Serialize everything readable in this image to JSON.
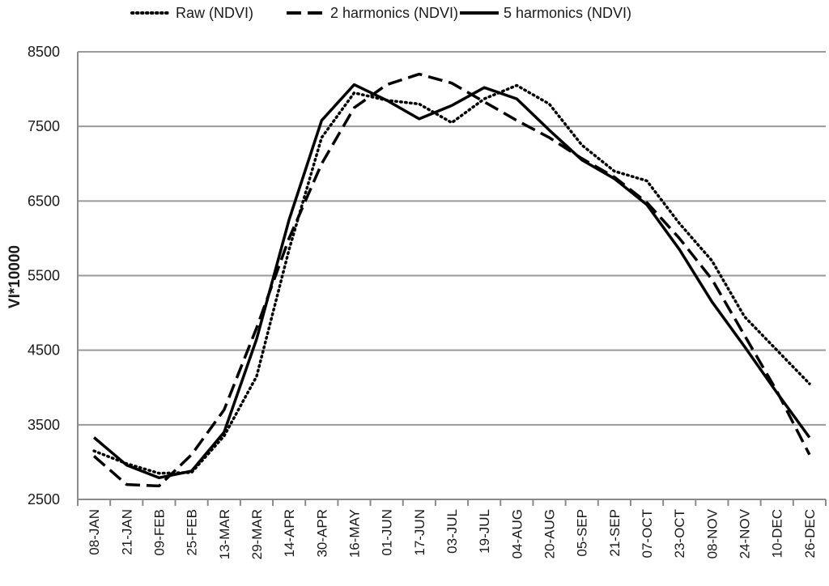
{
  "chart_data": {
    "type": "line",
    "title": "",
    "xlabel": "",
    "ylabel": "VI*10000",
    "ylim": [
      2500,
      8500
    ],
    "yticks": [
      2500,
      3500,
      4500,
      5500,
      6500,
      7500,
      8500
    ],
    "grid": "horizontal",
    "legend_position": "top",
    "categories": [
      "08-JAN",
      "21-JAN",
      "09-FEB",
      "25-FEB",
      "13-MAR",
      "29-MAR",
      "14-APR",
      "30-APR",
      "16-MAY",
      "01-JUN",
      "17-JUN",
      "03-JUL",
      "19-JUL",
      "04-AUG",
      "20-AUG",
      "05-SEP",
      "21-SEP",
      "07-OCT",
      "23-OCT",
      "08-NOV",
      "24-NOV",
      "10-DEC",
      "26-DEC"
    ],
    "series": [
      {
        "name": "Raw (NDVI)",
        "style": "dotted",
        "values": [
          3150,
          2980,
          2850,
          2860,
          3350,
          4150,
          5850,
          7350,
          7950,
          7850,
          7800,
          7550,
          7870,
          8050,
          7800,
          7250,
          6900,
          6770,
          6200,
          5700,
          4950,
          4500,
          4050
        ]
      },
      {
        "name": "2 harmonics (NDVI)",
        "style": "dashed",
        "values": [
          3080,
          2700,
          2680,
          3100,
          3700,
          4800,
          6000,
          7000,
          7750,
          8060,
          8200,
          8080,
          7830,
          7580,
          7350,
          7070,
          6820,
          6480,
          6000,
          5450,
          4700,
          3950,
          3100
        ]
      },
      {
        "name": "5 harmonics (NDVI)",
        "style": "solid",
        "values": [
          3330,
          2960,
          2790,
          2880,
          3400,
          4650,
          6250,
          7580,
          8060,
          7850,
          7600,
          7780,
          8020,
          7870,
          7450,
          7050,
          6800,
          6450,
          5850,
          5150,
          4550,
          3930,
          3330
        ]
      }
    ]
  }
}
